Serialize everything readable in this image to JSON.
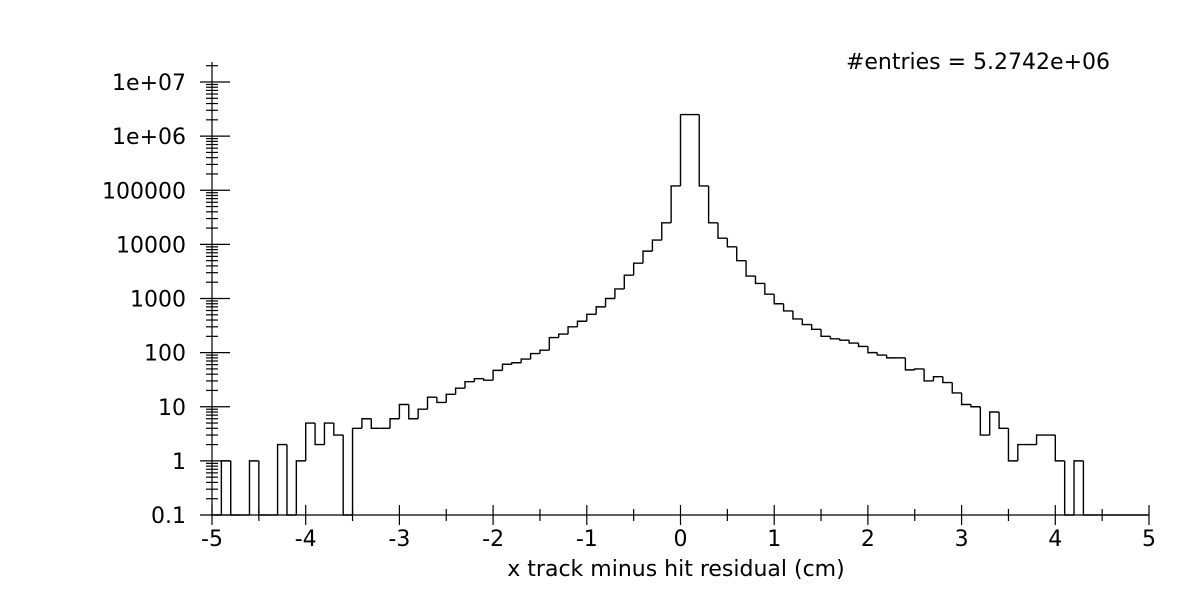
{
  "chart_data": {
    "type": "histogram",
    "title": "",
    "xlabel": "x track minus hit residual (cm)",
    "ylabel": "",
    "annotation": "#entries = 5.2742e+06",
    "xlim": [
      -5,
      5
    ],
    "ylim": [
      0.1,
      10000000
    ],
    "y_scale": "log",
    "x_ticks": [
      {
        "value": -5,
        "label": "-5"
      },
      {
        "value": -4,
        "label": "-4"
      },
      {
        "value": -3,
        "label": "-3"
      },
      {
        "value": -2,
        "label": "-2"
      },
      {
        "value": -1,
        "label": "-1"
      },
      {
        "value": 0,
        "label": "0"
      },
      {
        "value": 1,
        "label": "1"
      },
      {
        "value": 2,
        "label": "2"
      },
      {
        "value": 3,
        "label": "3"
      },
      {
        "value": 4,
        "label": "4"
      },
      {
        "value": 5,
        "label": "5"
      }
    ],
    "y_ticks": [
      {
        "value": 0.1,
        "label": "0.1"
      },
      {
        "value": 1,
        "label": "1"
      },
      {
        "value": 10,
        "label": "10"
      },
      {
        "value": 100,
        "label": "100"
      },
      {
        "value": 1000,
        "label": "1000"
      },
      {
        "value": 10000,
        "label": "10000"
      },
      {
        "value": 100000,
        "label": "100000"
      },
      {
        "value": 1000000,
        "label": "1e+06"
      },
      {
        "value": 10000000,
        "label": "1e+07"
      }
    ],
    "bin_edges_start": -5,
    "bin_width": 0.1,
    "values": [
      0,
      1,
      0,
      0,
      1,
      0,
      0,
      2,
      0,
      1,
      5,
      2,
      5,
      3,
      0,
      4,
      6,
      4,
      4,
      6,
      11,
      6,
      9,
      15,
      12,
      17,
      22,
      29,
      33,
      31,
      47,
      61,
      65,
      76,
      96,
      111,
      190,
      220,
      300,
      380,
      510,
      700,
      1000,
      1500,
      2700,
      4500,
      7500,
      12000,
      25000,
      120000,
      2500000,
      2500000,
      120000,
      25000,
      13000,
      9000,
      5000,
      2600,
      1900,
      1200,
      800,
      590,
      420,
      330,
      270,
      200,
      180,
      170,
      150,
      130,
      100,
      90,
      80,
      80,
      48,
      50,
      30,
      36,
      28,
      18,
      11,
      10,
      3,
      8,
      4,
      1,
      2,
      2,
      3,
      3,
      1,
      0,
      1,
      0,
      0,
      0,
      0,
      0,
      0,
      0
    ],
    "legend": "none",
    "grid": false
  }
}
